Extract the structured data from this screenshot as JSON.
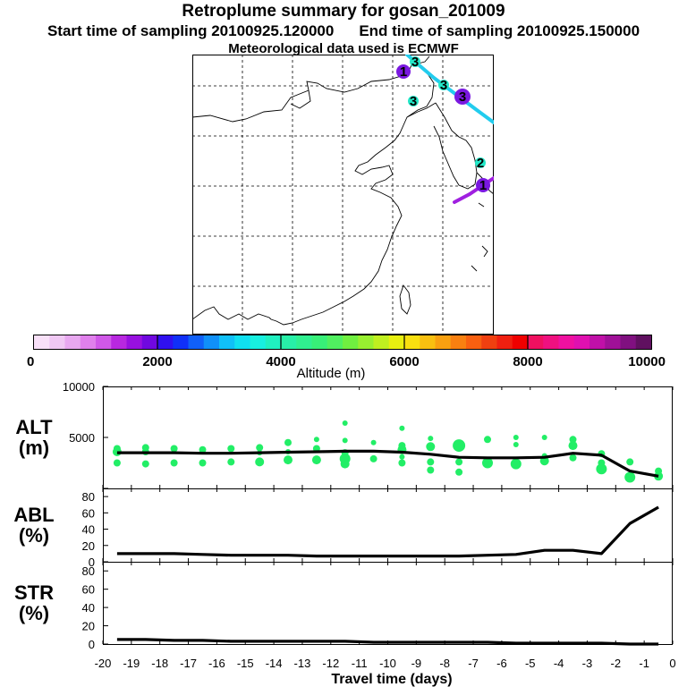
{
  "header": {
    "title": "Retroplume summary for gosan_201009",
    "start_sampling": "Start time of sampling 20100925.120000",
    "end_sampling": "End time of sampling 20100925.150000",
    "met_data": "Meteorological data used is ECMWF"
  },
  "map": {
    "markers": [
      {
        "label": "1",
        "color": "#7a18e0"
      },
      {
        "label": "3",
        "color": "#22e8c8"
      },
      {
        "label": "3",
        "color": "#22e8c8"
      },
      {
        "label": "3",
        "color": "#22e8c8"
      },
      {
        "label": "3",
        "color": "#7a18e0"
      },
      {
        "label": "2",
        "color": "#22e8c8"
      },
      {
        "label": "1",
        "color": "#7a18e0"
      }
    ]
  },
  "colorbar": {
    "title": "Altitude (m)",
    "tick_labels": [
      "0",
      "2000",
      "4000",
      "6000",
      "8000",
      "10000"
    ],
    "colors": [
      "#f8e0f8",
      "#f0c8f4",
      "#e8a8f0",
      "#e080ec",
      "#d058e8",
      "#b828e0",
      "#9810e0",
      "#7008e0",
      "#3010f0",
      "#1030f8",
      "#1060f8",
      "#1090f8",
      "#10c0f8",
      "#10e0f0",
      "#18f0e0",
      "#20f0c0",
      "#28f0a8",
      "#30f090",
      "#38f078",
      "#50f060",
      "#70f040",
      "#98f030",
      "#c0f020",
      "#e8f010",
      "#f8e010",
      "#f8c010",
      "#f8a010",
      "#f88010",
      "#f86010",
      "#f04010",
      "#f02010",
      "#f00000",
      "#f01060",
      "#f01080",
      "#f010a0",
      "#e010b0",
      "#c010a8",
      "#a01098",
      "#801080",
      "#601060"
    ]
  },
  "chart_data": [
    {
      "type": "line",
      "name": "ALT",
      "ylabel": "ALT\n(m)",
      "ylabel_lines": [
        "ALT",
        "(m)"
      ],
      "ylim": [
        0,
        10000
      ],
      "yticks": [
        0,
        5000,
        10000
      ],
      "ytick_labels": [
        "",
        "5000",
        "10000"
      ],
      "xlim": [
        -20,
        0
      ],
      "x": [
        -19.5,
        -18.5,
        -17.5,
        -16.5,
        -15.5,
        -14.5,
        -13.5,
        -12.5,
        -11.5,
        -10.5,
        -9.5,
        -8.5,
        -7.5,
        -6.5,
        -5.5,
        -4.5,
        -3.5,
        -2.5,
        -1.5,
        -0.5
      ],
      "values": [
        3500,
        3500,
        3500,
        3450,
        3450,
        3500,
        3550,
        3600,
        3650,
        3650,
        3550,
        3350,
        3050,
        3000,
        3000,
        3050,
        3450,
        3250,
        1700,
        1200
      ],
      "scatter_color": "#22ee66",
      "scatter": [
        {
          "x": -19.5,
          "y": 3900,
          "s": 4
        },
        {
          "x": -19.5,
          "y": 3600,
          "s": 5
        },
        {
          "x": -19.5,
          "y": 2500,
          "s": 4
        },
        {
          "x": -18.5,
          "y": 4000,
          "s": 4
        },
        {
          "x": -18.5,
          "y": 3600,
          "s": 4
        },
        {
          "x": -18.5,
          "y": 2400,
          "s": 4
        },
        {
          "x": -17.5,
          "y": 3900,
          "s": 4
        },
        {
          "x": -17.5,
          "y": 2500,
          "s": 4
        },
        {
          "x": -16.5,
          "y": 3800,
          "s": 4
        },
        {
          "x": -16.5,
          "y": 2500,
          "s": 4
        },
        {
          "x": -15.5,
          "y": 3900,
          "s": 4
        },
        {
          "x": -15.5,
          "y": 2600,
          "s": 4
        },
        {
          "x": -14.5,
          "y": 4000,
          "s": 4
        },
        {
          "x": -14.5,
          "y": 3500,
          "s": 3
        },
        {
          "x": -14.5,
          "y": 2600,
          "s": 5
        },
        {
          "x": -13.5,
          "y": 4500,
          "s": 4
        },
        {
          "x": -13.5,
          "y": 3600,
          "s": 3
        },
        {
          "x": -13.5,
          "y": 2800,
          "s": 5
        },
        {
          "x": -12.5,
          "y": 4800,
          "s": 3
        },
        {
          "x": -12.5,
          "y": 3900,
          "s": 4
        },
        {
          "x": -12.5,
          "y": 2800,
          "s": 5
        },
        {
          "x": -11.5,
          "y": 6400,
          "s": 3
        },
        {
          "x": -11.5,
          "y": 4700,
          "s": 3
        },
        {
          "x": -11.5,
          "y": 3500,
          "s": 4
        },
        {
          "x": -11.5,
          "y": 2900,
          "s": 6
        },
        {
          "x": -11.5,
          "y": 2400,
          "s": 5
        },
        {
          "x": -10.5,
          "y": 4500,
          "s": 3
        },
        {
          "x": -10.5,
          "y": 2900,
          "s": 4
        },
        {
          "x": -9.5,
          "y": 5900,
          "s": 3
        },
        {
          "x": -9.5,
          "y": 4200,
          "s": 4
        },
        {
          "x": -9.5,
          "y": 3800,
          "s": 5
        },
        {
          "x": -9.5,
          "y": 3100,
          "s": 3
        },
        {
          "x": -9.5,
          "y": 2500,
          "s": 4
        },
        {
          "x": -8.5,
          "y": 4900,
          "s": 3
        },
        {
          "x": -8.5,
          "y": 4100,
          "s": 5
        },
        {
          "x": -8.5,
          "y": 2600,
          "s": 4
        },
        {
          "x": -8.5,
          "y": 1800,
          "s": 4
        },
        {
          "x": -7.5,
          "y": 4200,
          "s": 7
        },
        {
          "x": -7.5,
          "y": 2600,
          "s": 4
        },
        {
          "x": -7.5,
          "y": 1600,
          "s": 4
        },
        {
          "x": -6.5,
          "y": 4800,
          "s": 4
        },
        {
          "x": -6.5,
          "y": 2500,
          "s": 6
        },
        {
          "x": -5.5,
          "y": 5000,
          "s": 3
        },
        {
          "x": -5.5,
          "y": 4300,
          "s": 3
        },
        {
          "x": -5.5,
          "y": 2400,
          "s": 6
        },
        {
          "x": -4.5,
          "y": 5000,
          "s": 3
        },
        {
          "x": -4.5,
          "y": 3200,
          "s": 3
        },
        {
          "x": -4.5,
          "y": 2700,
          "s": 5
        },
        {
          "x": -3.5,
          "y": 4800,
          "s": 4
        },
        {
          "x": -3.5,
          "y": 4200,
          "s": 5
        },
        {
          "x": -3.5,
          "y": 3000,
          "s": 4
        },
        {
          "x": -2.5,
          "y": 3400,
          "s": 4
        },
        {
          "x": -2.5,
          "y": 2500,
          "s": 4
        },
        {
          "x": -2.5,
          "y": 1900,
          "s": 6
        },
        {
          "x": -1.5,
          "y": 2600,
          "s": 4
        },
        {
          "x": -1.5,
          "y": 1100,
          "s": 6
        },
        {
          "x": -0.5,
          "y": 1700,
          "s": 4
        },
        {
          "x": -0.5,
          "y": 1200,
          "s": 5
        }
      ]
    },
    {
      "type": "line",
      "name": "ABL",
      "ylabel": "ABL\n(%)",
      "ylabel_lines": [
        "ABL",
        "(%)"
      ],
      "ylim": [
        0,
        90
      ],
      "yticks": [
        0,
        20,
        40,
        60,
        80
      ],
      "ytick_labels": [
        "0",
        "20",
        "40",
        "60",
        "80"
      ],
      "xlim": [
        -20,
        0
      ],
      "x": [
        -19.5,
        -18.5,
        -17.5,
        -16.5,
        -15.5,
        -14.5,
        -13.5,
        -12.5,
        -11.5,
        -10.5,
        -9.5,
        -8.5,
        -7.5,
        -6.5,
        -5.5,
        -4.5,
        -3.5,
        -2.5,
        -1.5,
        -0.5
      ],
      "values": [
        10,
        10,
        10,
        9,
        8,
        8,
        8,
        7,
        7,
        7,
        7,
        7,
        7,
        8,
        9,
        14,
        14,
        10,
        47,
        67
      ]
    },
    {
      "type": "line",
      "name": "STR",
      "ylabel": "STR\n(%)",
      "ylabel_lines": [
        "STR",
        "(%)"
      ],
      "ylim": [
        0,
        90
      ],
      "yticks": [
        0,
        20,
        40,
        60,
        80
      ],
      "ytick_labels": [
        "0",
        "20",
        "40",
        "60",
        "80"
      ],
      "xlim": [
        -20,
        0
      ],
      "xlabel": "Travel time (days)",
      "xtick_labels": [
        "-20",
        "-19",
        "-18",
        "-17",
        "-16",
        "-15",
        "-14",
        "-13",
        "-12",
        "-11",
        "-10",
        "-9",
        "-8",
        "-7",
        "-6",
        "-5",
        "-4",
        "-3",
        "-2",
        "-1",
        "0"
      ],
      "x": [
        -19.5,
        -18.5,
        -17.5,
        -16.5,
        -15.5,
        -14.5,
        -13.5,
        -12.5,
        -11.5,
        -10.5,
        -9.5,
        -8.5,
        -7.5,
        -6.5,
        -5.5,
        -4.5,
        -3.5,
        -2.5,
        -1.5,
        -0.5
      ],
      "values": [
        5,
        5,
        4,
        4,
        3,
        3,
        3,
        3,
        3,
        2,
        2,
        2,
        2,
        2,
        1,
        1,
        1,
        1,
        0,
        0
      ]
    }
  ]
}
